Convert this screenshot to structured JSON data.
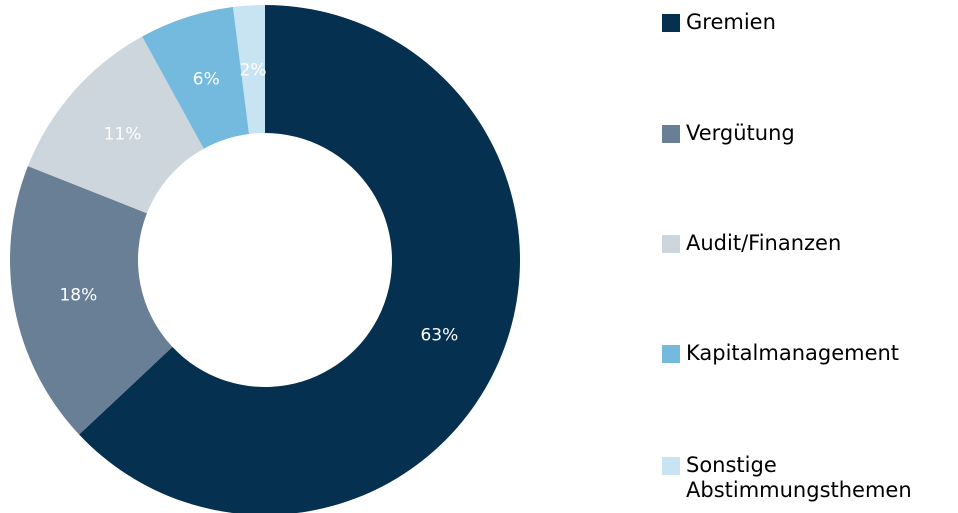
{
  "chart_data": {
    "type": "pie",
    "categories": [
      "Gremien",
      "Vergütung",
      "Audit/Finanzen",
      "Kapitalmanagement",
      "Sonstige Abstimmungsthemen"
    ],
    "values": [
      63,
      18,
      11,
      6,
      2
    ],
    "value_labels": [
      "63%",
      "18%",
      "11%",
      "6%",
      "2%"
    ],
    "colors": [
      "#063050",
      "#687f96",
      "#cdd5dd",
      "#74bade",
      "#c8e4f2"
    ],
    "legend": "right"
  }
}
